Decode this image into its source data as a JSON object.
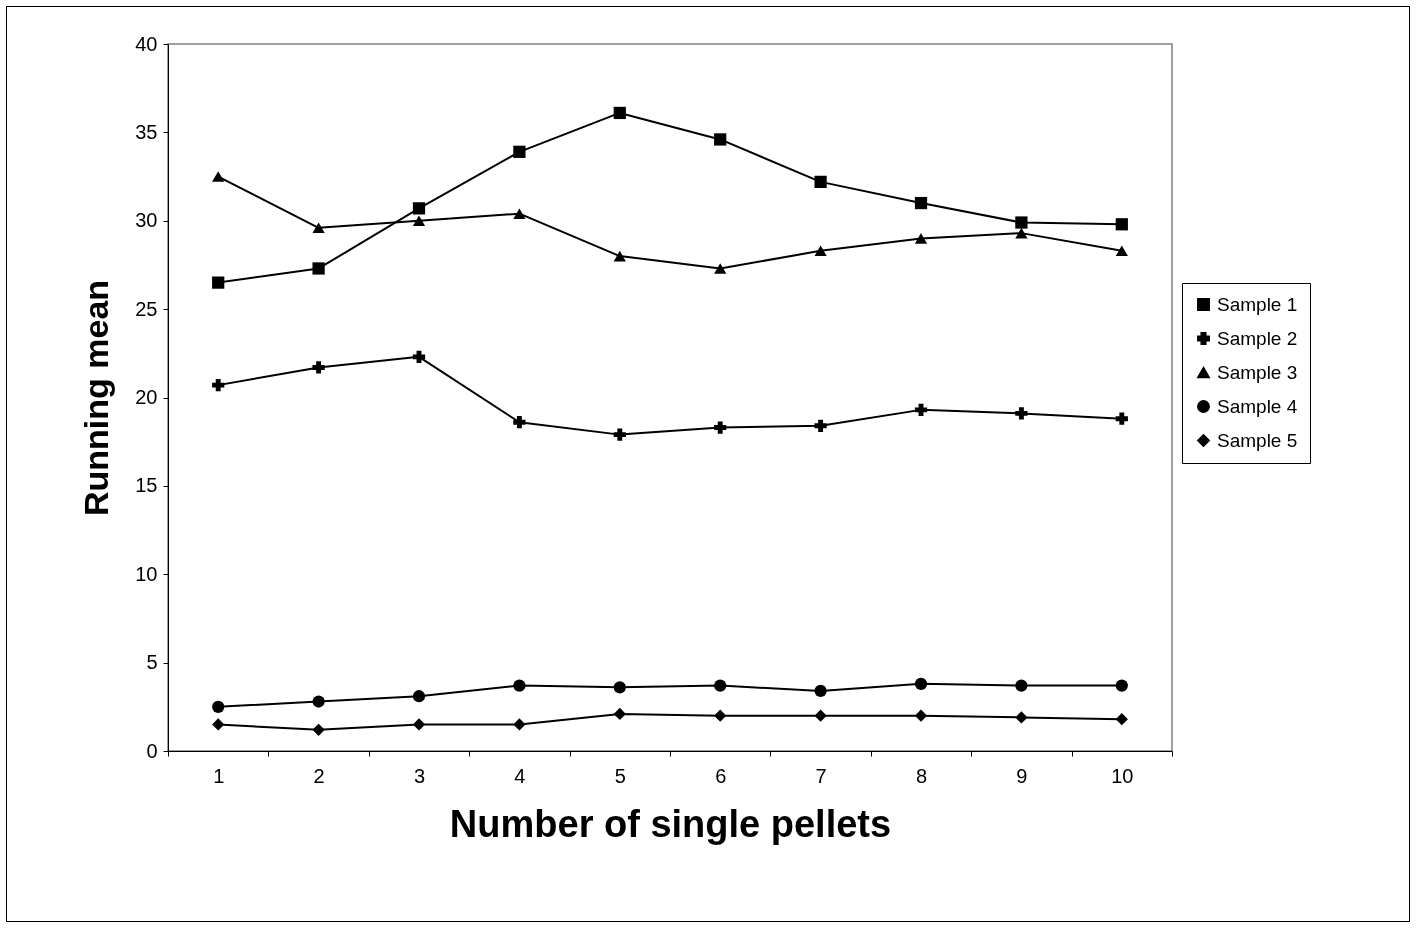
{
  "chart_data": {
    "type": "line",
    "xlabel": "Number of single pellets",
    "ylabel": "Running mean",
    "categories": [
      "1",
      "2",
      "3",
      "4",
      "5",
      "6",
      "7",
      "8",
      "9",
      "10"
    ],
    "series": [
      {
        "name": "Sample 1",
        "color": "#000000",
        "marker": "square",
        "values": [
          26.5,
          27.3,
          30.7,
          33.9,
          36.1,
          34.6,
          32.2,
          31.0,
          29.9,
          29.8
        ]
      },
      {
        "name": "Sample 2",
        "color": "#000000",
        "marker": "cross",
        "values": [
          20.7,
          21.7,
          22.3,
          18.6,
          17.9,
          18.3,
          18.4,
          19.3,
          19.1,
          18.8
        ]
      },
      {
        "name": "Sample 3",
        "color": "#000000",
        "marker": "triangle",
        "values": [
          32.5,
          29.6,
          30.0,
          30.4,
          28.0,
          27.3,
          28.3,
          29.0,
          29.3,
          28.3
        ]
      },
      {
        "name": "Sample 4",
        "color": "#000000",
        "marker": "circle",
        "values": [
          2.5,
          2.8,
          3.1,
          3.7,
          3.6,
          3.7,
          3.4,
          3.8,
          3.7,
          3.7
        ]
      },
      {
        "name": "Sample 5",
        "color": "#000000",
        "marker": "diamond",
        "values": [
          1.5,
          1.2,
          1.5,
          1.5,
          2.1,
          2.0,
          2.0,
          2.0,
          1.9,
          1.8
        ]
      }
    ],
    "ylim": [
      0,
      40
    ],
    "yticks": [
      0,
      5,
      10,
      15,
      20,
      25,
      30,
      35,
      40
    ],
    "grid": false,
    "legend": "right",
    "line_style": "solid"
  }
}
